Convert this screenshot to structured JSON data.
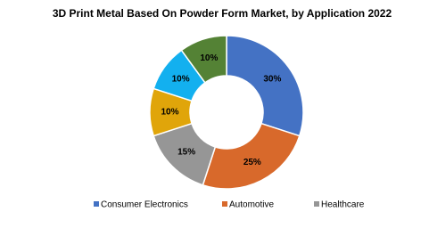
{
  "chart_data": {
    "type": "donut",
    "title": "3D Print Metal Based On Powder Form Market, by Application 2022",
    "categories": [
      "Consumer Electronics",
      "Automotive",
      "Healthcare",
      null,
      null,
      null
    ],
    "values": [
      30,
      25,
      15,
      10,
      10,
      10
    ],
    "value_labels": [
      "30%",
      "25%",
      "15%",
      "10%",
      "10%",
      "10%"
    ],
    "colors": [
      "#4472c4",
      "#d8692b",
      "#969696",
      "#e0a50a",
      "#13b0ef",
      "#548235"
    ],
    "legend": "bottom"
  }
}
